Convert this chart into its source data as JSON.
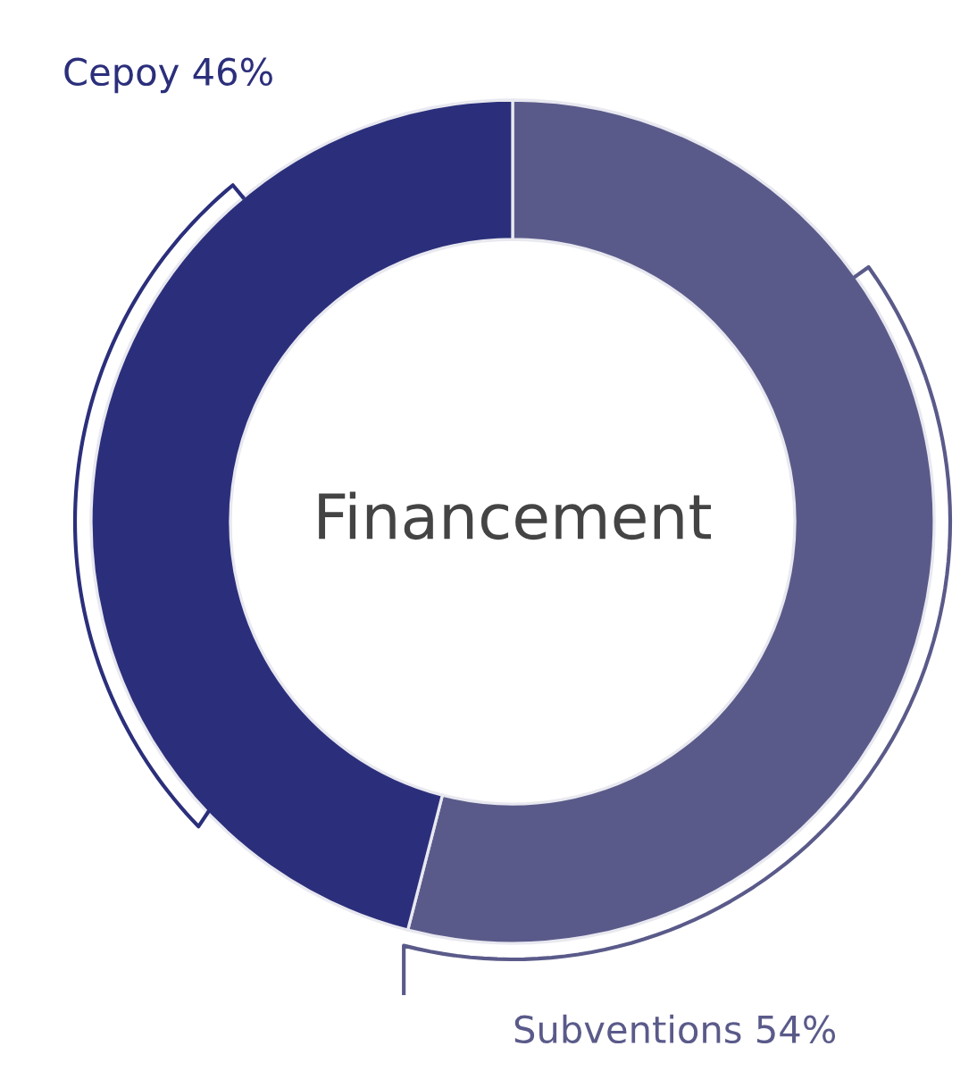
{
  "chart_data": {
    "type": "donut",
    "title": "Financement",
    "categories": [
      "Subventions",
      "Cepoy"
    ],
    "values": [
      54,
      46
    ],
    "value_labels": [
      "54%",
      "46%"
    ],
    "colors": [
      "#5a5a8a",
      "#2b2f7b"
    ]
  }
}
